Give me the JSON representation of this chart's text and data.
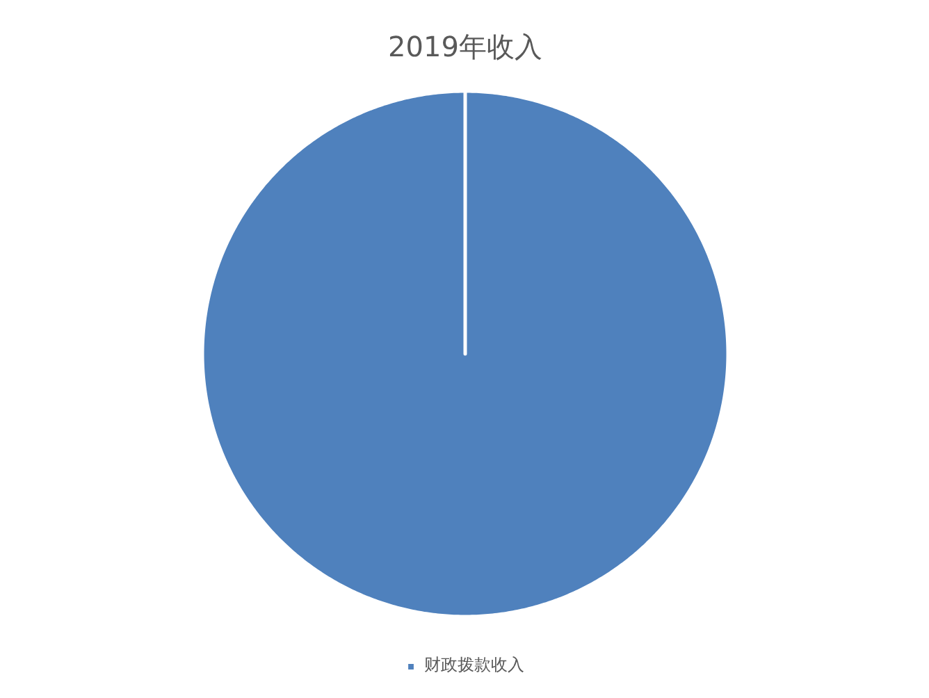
{
  "chart_data": {
    "type": "pie",
    "title": "2019年收入",
    "categories": [
      "财政拨款收入"
    ],
    "values": [
      100
    ],
    "colors": [
      "#4f81bd"
    ],
    "legend": "bottom"
  }
}
